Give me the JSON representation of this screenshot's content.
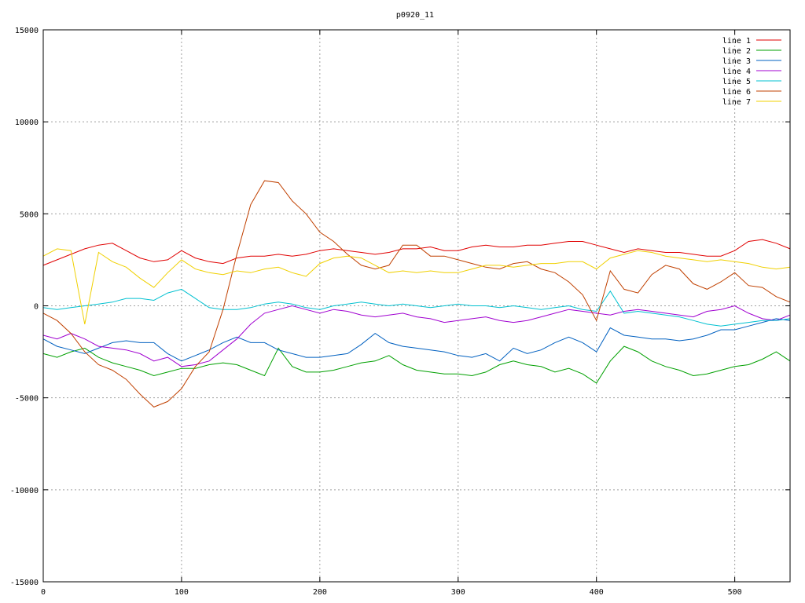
{
  "chart_data": {
    "type": "line",
    "title": "p0920_11",
    "xlabel": "",
    "ylabel": "",
    "xlim": [
      0,
      540
    ],
    "ylim": [
      -15000,
      15000
    ],
    "xticks": [
      0,
      100,
      200,
      300,
      400,
      500
    ],
    "yticks": [
      -15000,
      -10000,
      -5000,
      0,
      5000,
      10000,
      15000
    ],
    "grid": true,
    "legend_position": "top-right",
    "x": [
      0,
      10,
      20,
      30,
      40,
      50,
      60,
      70,
      80,
      90,
      100,
      110,
      120,
      130,
      140,
      150,
      160,
      170,
      180,
      190,
      200,
      210,
      220,
      230,
      240,
      250,
      260,
      270,
      280,
      290,
      300,
      310,
      320,
      330,
      340,
      350,
      360,
      370,
      380,
      390,
      400,
      410,
      420,
      430,
      440,
      450,
      460,
      470,
      480,
      490,
      500,
      510,
      520,
      530,
      540
    ],
    "series": [
      {
        "name": "line 1",
        "color": "#e00000",
        "values": [
          2200,
          2500,
          2800,
          3100,
          3300,
          3400,
          3000,
          2600,
          2400,
          2500,
          3000,
          2600,
          2400,
          2300,
          2600,
          2700,
          2700,
          2800,
          2700,
          2800,
          3000,
          3100,
          3000,
          2900,
          2800,
          2900,
          3100,
          3100,
          3200,
          3000,
          3000,
          3200,
          3300,
          3200,
          3200,
          3300,
          3300,
          3400,
          3500,
          3500,
          3300,
          3100,
          2900,
          3100,
          3000,
          2900,
          2900,
          2800,
          2700,
          2700,
          3000,
          3500,
          3600,
          3400,
          3100
        ]
      },
      {
        "name": "line 2",
        "color": "#00a000",
        "values": [
          -2600,
          -2800,
          -2500,
          -2300,
          -2800,
          -3100,
          -3300,
          -3500,
          -3800,
          -3600,
          -3400,
          -3400,
          -3200,
          -3100,
          -3200,
          -3500,
          -3800,
          -2300,
          -3300,
          -3600,
          -3600,
          -3500,
          -3300,
          -3100,
          -3000,
          -2700,
          -3200,
          -3500,
          -3600,
          -3700,
          -3700,
          -3800,
          -3600,
          -3200,
          -3000,
          -3200,
          -3300,
          -3600,
          -3400,
          -3700,
          -4200,
          -3000,
          -2200,
          -2500,
          -3000,
          -3300,
          -3500,
          -3800,
          -3700,
          -3500,
          -3300,
          -3200,
          -2900,
          -2500,
          -3000
        ]
      },
      {
        "name": "line 3",
        "color": "#0060c0",
        "values": [
          -1800,
          -2200,
          -2400,
          -2600,
          -2300,
          -2000,
          -1900,
          -2000,
          -2000,
          -2600,
          -3000,
          -2700,
          -2400,
          -2000,
          -1700,
          -2000,
          -2000,
          -2400,
          -2600,
          -2800,
          -2800,
          -2700,
          -2600,
          -2100,
          -1500,
          -2000,
          -2200,
          -2300,
          -2400,
          -2500,
          -2700,
          -2800,
          -2600,
          -3000,
          -2300,
          -2600,
          -2400,
          -2000,
          -1700,
          -2000,
          -2500,
          -1200,
          -1600,
          -1700,
          -1800,
          -1800,
          -1900,
          -1800,
          -1600,
          -1300,
          -1300,
          -1100,
          -900,
          -700,
          -800
        ]
      },
      {
        "name": "line 4",
        "color": "#a000d0",
        "values": [
          -1600,
          -1800,
          -1500,
          -1800,
          -2200,
          -2300,
          -2400,
          -2600,
          -3000,
          -2800,
          -3300,
          -3200,
          -3000,
          -2400,
          -1800,
          -1000,
          -400,
          -200,
          0,
          -200,
          -400,
          -200,
          -300,
          -500,
          -600,
          -500,
          -400,
          -600,
          -700,
          -900,
          -800,
          -700,
          -600,
          -800,
          -900,
          -800,
          -600,
          -400,
          -200,
          -300,
          -400,
          -500,
          -300,
          -200,
          -300,
          -400,
          -500,
          -600,
          -300,
          -200,
          0,
          -400,
          -700,
          -800,
          -500
        ]
      },
      {
        "name": "line 5",
        "color": "#00c0d0",
        "values": [
          -100,
          -200,
          -100,
          0,
          100,
          200,
          400,
          400,
          300,
          700,
          900,
          400,
          -100,
          -200,
          -200,
          -100,
          100,
          200,
          100,
          -100,
          -200,
          0,
          100,
          200,
          100,
          0,
          100,
          0,
          -100,
          0,
          100,
          0,
          0,
          -100,
          0,
          -100,
          -200,
          -100,
          0,
          -200,
          -300,
          800,
          -400,
          -300,
          -400,
          -500,
          -600,
          -800,
          -1000,
          -1100,
          -1000,
          -900,
          -800,
          -800,
          -700
        ]
      },
      {
        "name": "line 6",
        "color": "#c04000",
        "values": [
          -400,
          -800,
          -1500,
          -2500,
          -3200,
          -3500,
          -4000,
          -4800,
          -5500,
          -5200,
          -4500,
          -3300,
          -2500,
          -200,
          2800,
          5500,
          6800,
          6700,
          5700,
          5000,
          4000,
          3500,
          2800,
          2200,
          2000,
          2200,
          3300,
          3300,
          2700,
          2700,
          2500,
          2300,
          2100,
          2000,
          2300,
          2400,
          2000,
          1800,
          1300,
          600,
          -800,
          1900,
          900,
          700,
          1700,
          2200,
          2000,
          1200,
          900,
          1300,
          1800,
          1100,
          1000,
          500,
          200
        ]
      },
      {
        "name": "line 7",
        "color": "#f0d000",
        "values": [
          2700,
          3100,
          3000,
          -1000,
          2900,
          2400,
          2100,
          1500,
          1000,
          1800,
          2500,
          2000,
          1800,
          1700,
          1900,
          1800,
          2000,
          2100,
          1800,
          1600,
          2300,
          2600,
          2700,
          2600,
          2200,
          1800,
          1900,
          1800,
          1900,
          1800,
          1800,
          2000,
          2200,
          2200,
          2100,
          2200,
          2300,
          2300,
          2400,
          2400,
          2000,
          2600,
          2800,
          3000,
          2900,
          2700,
          2600,
          2500,
          2400,
          2500,
          2400,
          2300,
          2100,
          2000,
          2100
        ]
      }
    ]
  }
}
